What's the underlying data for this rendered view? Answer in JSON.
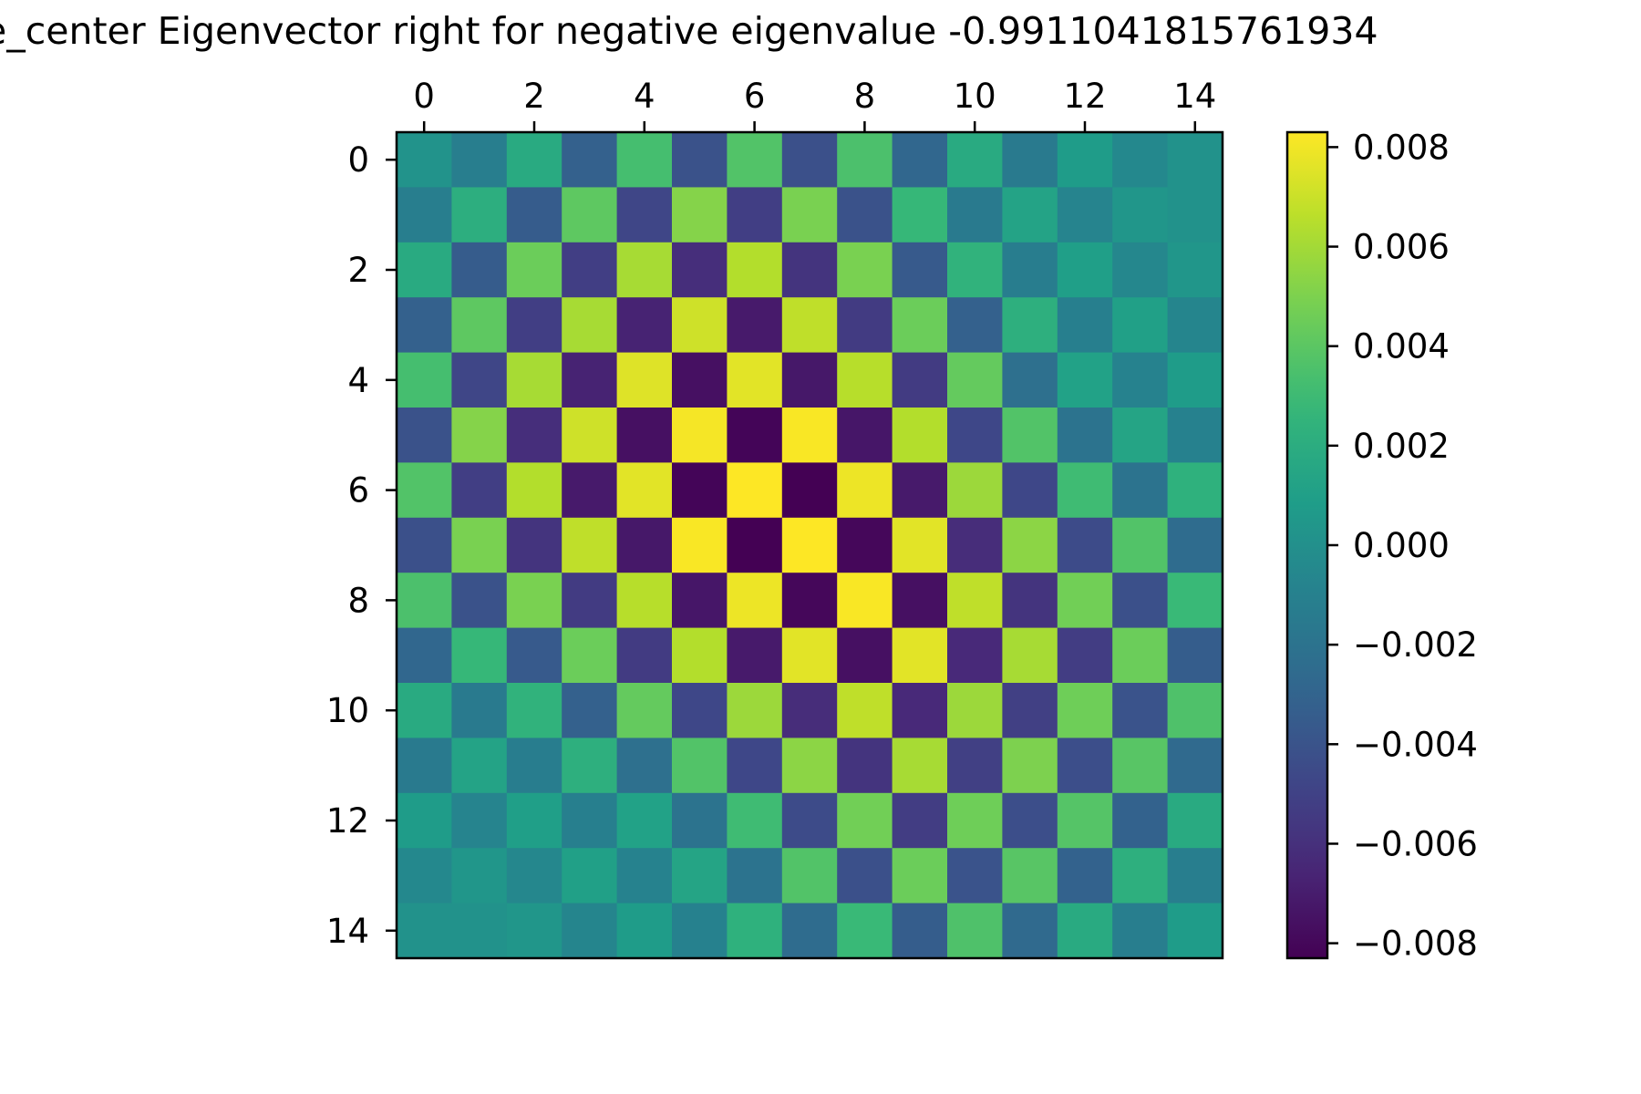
{
  "chart_data": {
    "type": "heatmap",
    "title": "e_center Eigenvector right for negative eigenvalue -0.9911041815761934",
    "colormap": "viridis",
    "vmin": -0.0083,
    "vmax": 0.0083,
    "x_ticks": [
      0,
      2,
      4,
      6,
      8,
      10,
      12,
      14
    ],
    "x_tick_labels": [
      "0",
      "2",
      "4",
      "6",
      "8",
      "10",
      "12",
      "14"
    ],
    "y_ticks": [
      0,
      2,
      4,
      6,
      8,
      10,
      12,
      14
    ],
    "y_tick_labels": [
      "0",
      "2",
      "4",
      "6",
      "8",
      "10",
      "12",
      "14"
    ],
    "colorbar_ticks": [
      0.008,
      0.006,
      0.004,
      0.002,
      0.0,
      -0.002,
      -0.004,
      -0.006,
      -0.008
    ],
    "colorbar_tick_labels": [
      "0.008",
      "0.006",
      "0.004",
      "0.002",
      "0.000",
      "−0.002",
      "−0.004",
      "−0.006",
      "−0.008"
    ],
    "n_rows": 15,
    "n_cols": 15,
    "values": [
      [
        0.0002,
        -0.0012,
        0.0018,
        -0.0032,
        0.0033,
        -0.0041,
        0.0037,
        -0.0042,
        0.0035,
        -0.0028,
        0.0018,
        -0.0015,
        0.0008,
        -0.0005,
        0.0001
      ],
      [
        -0.0012,
        0.0021,
        -0.0035,
        0.0041,
        -0.0048,
        0.0052,
        -0.0052,
        0.0049,
        -0.0041,
        0.0028,
        -0.0015,
        0.0013,
        -0.0008,
        0.0004,
        0.0001
      ],
      [
        0.0018,
        -0.0035,
        0.0045,
        -0.0052,
        0.0061,
        -0.0061,
        0.0064,
        -0.0058,
        0.0049,
        -0.0036,
        0.0024,
        -0.0013,
        0.001,
        -0.0006,
        0.0004
      ],
      [
        -0.0032,
        0.0041,
        -0.0052,
        0.0061,
        -0.0067,
        0.0071,
        -0.0071,
        0.0067,
        -0.0054,
        0.0045,
        -0.0032,
        0.0022,
        -0.0011,
        0.0011,
        -0.0007
      ],
      [
        0.0033,
        -0.0048,
        0.0061,
        -0.0067,
        0.0075,
        -0.0076,
        0.0076,
        -0.0072,
        0.0065,
        -0.0054,
        0.0043,
        -0.0022,
        0.0012,
        -0.0009,
        0.0008
      ],
      [
        -0.0041,
        0.0052,
        -0.0061,
        0.0071,
        -0.0076,
        0.0081,
        -0.0081,
        0.0082,
        -0.0073,
        0.0064,
        -0.0047,
        0.0037,
        -0.002,
        0.0014,
        -0.001
      ],
      [
        0.0037,
        -0.0052,
        0.0064,
        -0.0071,
        0.0076,
        -0.0081,
        0.0083,
        -0.0083,
        0.0079,
        -0.0071,
        0.0058,
        -0.0047,
        0.0031,
        -0.002,
        0.0023
      ],
      [
        -0.0042,
        0.0049,
        -0.0058,
        0.0067,
        -0.0072,
        0.0082,
        -0.0083,
        0.0083,
        -0.008,
        0.0076,
        -0.0062,
        0.0054,
        -0.0045,
        0.0037,
        -0.0025
      ],
      [
        0.0035,
        -0.0041,
        0.0049,
        -0.0054,
        0.0065,
        -0.0073,
        0.0079,
        -0.008,
        0.0082,
        -0.0076,
        0.0067,
        -0.0058,
        0.0047,
        -0.0042,
        0.0029
      ],
      [
        -0.0028,
        0.0028,
        -0.0036,
        0.0045,
        -0.0054,
        0.0064,
        -0.0071,
        0.0076,
        -0.0076,
        0.0076,
        -0.0064,
        0.0061,
        -0.0053,
        0.0045,
        -0.0034
      ],
      [
        0.0018,
        -0.0015,
        0.0024,
        -0.0032,
        0.0043,
        -0.0047,
        0.0058,
        -0.0062,
        0.0067,
        -0.0064,
        0.0058,
        -0.0051,
        0.0046,
        -0.004,
        0.0036
      ],
      [
        -0.0015,
        0.0013,
        -0.0013,
        0.0022,
        -0.0022,
        0.0037,
        -0.0047,
        0.0054,
        -0.0058,
        0.0061,
        -0.0051,
        0.005,
        -0.0043,
        0.0039,
        -0.0026
      ],
      [
        0.0008,
        -0.0008,
        0.001,
        -0.0011,
        0.0012,
        -0.002,
        0.0031,
        -0.0045,
        0.0047,
        -0.0053,
        0.0046,
        -0.0043,
        0.0038,
        -0.0031,
        0.0018
      ],
      [
        -0.0005,
        0.0004,
        -0.0006,
        0.0011,
        -0.0009,
        0.0014,
        -0.002,
        0.0037,
        -0.0042,
        0.0045,
        -0.004,
        0.0039,
        -0.0031,
        0.0022,
        -0.0012
      ],
      [
        0.0001,
        0.0001,
        0.0004,
        -0.0007,
        0.0008,
        -0.001,
        0.0023,
        -0.0025,
        0.0029,
        -0.0034,
        0.0036,
        -0.0026,
        0.0018,
        -0.0012,
        0.0008
      ]
    ]
  }
}
